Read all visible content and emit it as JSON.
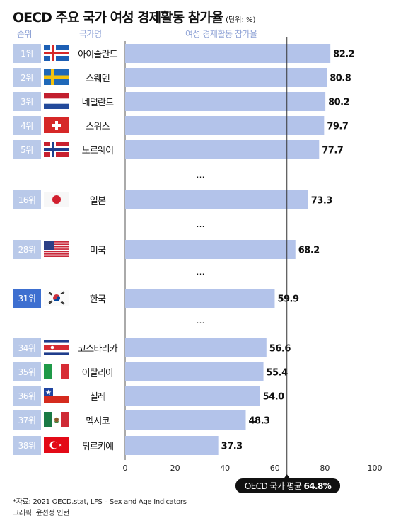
{
  "title": "OECD 주요 국가 여성 경제활동 참가율",
  "unit": "(단위: %)",
  "headers": {
    "rank": "순위",
    "country": "국가명",
    "rate": "여성 경제활동 참가율"
  },
  "ellipsis": "…",
  "average_label": "OECD 국가 평균",
  "average_value_label": "64.8%",
  "source": "*자료: 2021 OECD.stat, LFS – Sex and Age Indicators",
  "credit": "그래픽: 윤선정 인턴",
  "highlight_color": "#3d6fd0",
  "rank_color": "#b9c9e9",
  "bar_color": "#b3c3ea",
  "chart_data": {
    "type": "bar",
    "orientation": "horizontal",
    "xlim": [
      0,
      100
    ],
    "x_ticks": [
      "0",
      "20",
      "40",
      "60",
      "80",
      "100"
    ],
    "average": 64.8,
    "rows": [
      {
        "rank": "1위",
        "country": "아이슬란드",
        "flag": "iceland-flag-icon",
        "value": 82.2,
        "label": "82.2"
      },
      {
        "rank": "2위",
        "country": "스웨덴",
        "flag": "sweden-flag-icon",
        "value": 80.8,
        "label": "80.8"
      },
      {
        "rank": "3위",
        "country": "네덜란드",
        "flag": "netherlands-flag-icon",
        "value": 80.2,
        "label": "80.2"
      },
      {
        "rank": "4위",
        "country": "스위스",
        "flag": "switzerland-flag-icon",
        "value": 79.7,
        "label": "79.7"
      },
      {
        "rank": "5위",
        "country": "노르웨이",
        "flag": "norway-flag-icon",
        "value": 77.7,
        "label": "77.7"
      },
      {
        "rank": "16위",
        "country": "일본",
        "flag": "japan-flag-icon",
        "value": 73.3,
        "label": "73.3"
      },
      {
        "rank": "28위",
        "country": "미국",
        "flag": "usa-flag-icon",
        "value": 68.2,
        "label": "68.2"
      },
      {
        "rank": "31위",
        "country": "한국",
        "flag": "korea-flag-icon",
        "value": 59.9,
        "label": "59.9",
        "highlight": true
      },
      {
        "rank": "34위",
        "country": "코스타리카",
        "flag": "costa-rica-flag-icon",
        "value": 56.6,
        "label": "56.6"
      },
      {
        "rank": "35위",
        "country": "이탈리아",
        "flag": "italy-flag-icon",
        "value": 55.4,
        "label": "55.4"
      },
      {
        "rank": "36위",
        "country": "칠레",
        "flag": "chile-flag-icon",
        "value": 54.0,
        "label": "54.0"
      },
      {
        "rank": "37위",
        "country": "멕시코",
        "flag": "mexico-flag-icon",
        "value": 48.3,
        "label": "48.3"
      },
      {
        "rank": "38위",
        "country": "튀르키예",
        "flag": "turkiye-flag-icon",
        "value": 37.3,
        "label": "37.3"
      }
    ]
  }
}
